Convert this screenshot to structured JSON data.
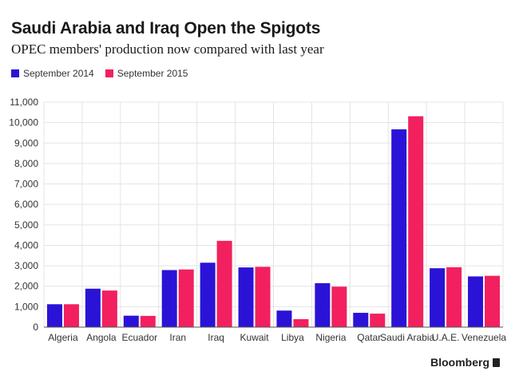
{
  "chart_data": {
    "type": "bar",
    "title": "Saudi Arabia and Iraq Open the Spigots",
    "subtitle": "OPEC members' production now compared with last year",
    "categories": [
      "Algeria",
      "Angola",
      "Ecuador",
      "Iran",
      "Iraq",
      "Kuwait",
      "Libya",
      "Nigeria",
      "Qatar",
      "Saudi Arabia",
      "U.A.E.",
      "Venezuela"
    ],
    "series": [
      {
        "name": "September 2014",
        "color": "#2a13d6",
        "values": [
          1120,
          1880,
          560,
          2790,
          3150,
          2920,
          810,
          2150,
          700,
          9670,
          2880,
          2480
        ]
      },
      {
        "name": "September 2015",
        "color": "#f2205f",
        "values": [
          1120,
          1790,
          550,
          2820,
          4220,
          2950,
          390,
          1980,
          660,
          10310,
          2930,
          2510
        ]
      }
    ],
    "ylim": [
      0,
      11000
    ],
    "yticks": [
      0,
      1000,
      2000,
      3000,
      4000,
      5000,
      6000,
      7000,
      8000,
      9000,
      10000,
      11000
    ],
    "ytick_labels": [
      "0",
      "1,000",
      "2,000",
      "3,000",
      "4,000",
      "5,000",
      "6,000",
      "7,000",
      "8,000",
      "9,000",
      "10,000",
      "11,000"
    ],
    "grid": true,
    "legend_position": "top-left",
    "source": "Bloomberg"
  }
}
